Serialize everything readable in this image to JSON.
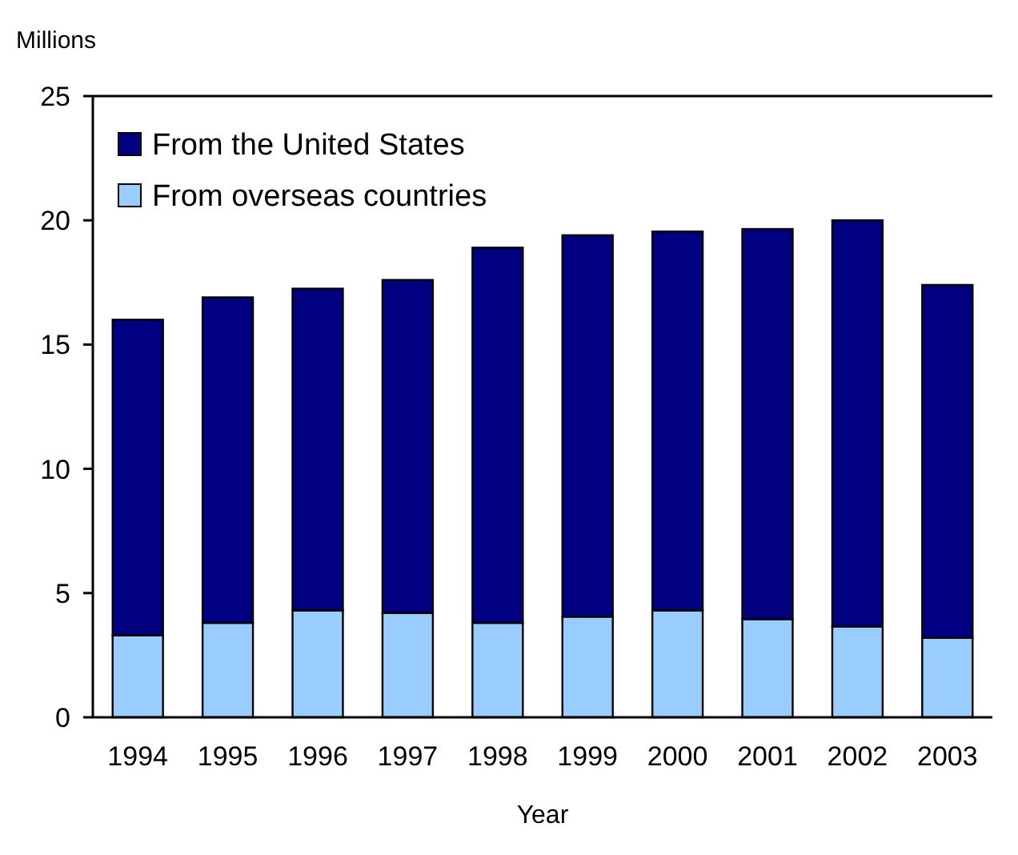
{
  "chart_data": {
    "type": "bar",
    "stacked": true,
    "ylabel": "Millions",
    "xlabel": "Year",
    "categories": [
      "1994",
      "1995",
      "1996",
      "1997",
      "1998",
      "1999",
      "2000",
      "2001",
      "2002",
      "2003"
    ],
    "series": [
      {
        "name": "From overseas countries",
        "color": "#99ccff",
        "values": [
          3.3,
          3.8,
          4.3,
          4.2,
          3.8,
          4.05,
          4.3,
          3.95,
          3.65,
          3.2
        ]
      },
      {
        "name": "From the United States",
        "color": "#000080",
        "values": [
          12.7,
          13.1,
          12.95,
          13.4,
          15.1,
          15.35,
          15.25,
          15.7,
          16.35,
          14.2
        ]
      }
    ],
    "ylim": [
      0,
      25
    ],
    "yticks": [
      0,
      5,
      10,
      15,
      20,
      25
    ],
    "grid": false,
    "legend": "top left"
  }
}
